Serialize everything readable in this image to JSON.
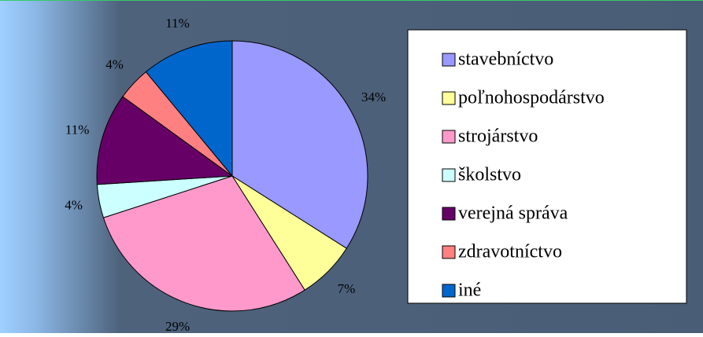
{
  "chart_data": {
    "type": "pie",
    "categories": [
      "stavebníctvo",
      "poľnohospodárstvo",
      "strojárstvo",
      "školstvo",
      "verejná správa",
      "zdravotníctvo",
      "iné"
    ],
    "values": [
      34,
      7,
      29,
      4,
      11,
      4,
      11
    ],
    "value_labels": [
      "34%",
      "7%",
      "29%",
      "4%",
      "11%",
      "4%",
      "11%"
    ],
    "colors": [
      "#9999ff",
      "#ffff99",
      "#ff99cc",
      "#ccffff",
      "#660066",
      "#ff8080",
      "#0066cc"
    ],
    "legend": "right"
  }
}
